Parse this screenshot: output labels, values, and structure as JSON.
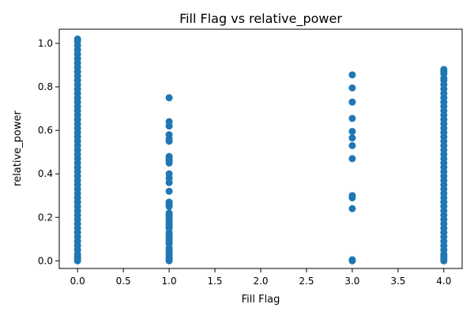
{
  "chart_data": {
    "type": "scatter",
    "title": "Fill Flag vs relative_power",
    "xlabel": "Fill Flag",
    "ylabel": "relative_power",
    "xlim": [
      -0.2,
      4.2
    ],
    "ylim": [
      -0.035,
      1.065
    ],
    "x_ticks": [
      0.0,
      0.5,
      1.0,
      1.5,
      2.0,
      2.5,
      3.0,
      3.5,
      4.0
    ],
    "x_tick_labels": [
      "0.0",
      "0.5",
      "1.0",
      "1.5",
      "2.0",
      "2.5",
      "3.0",
      "3.5",
      "4.0"
    ],
    "y_ticks": [
      0.0,
      0.2,
      0.4,
      0.6,
      0.8,
      1.0
    ],
    "y_tick_labels": [
      "0.0",
      "0.2",
      "0.4",
      "0.6",
      "0.8",
      "1.0"
    ],
    "grid": false,
    "legend": "none",
    "point_color": "#1f77b4",
    "series": [
      {
        "x_value": 0,
        "points": [
          0.0,
          0.01,
          0.02,
          0.03,
          0.05,
          0.07,
          0.09,
          0.11,
          0.13,
          0.15,
          0.17,
          0.19,
          0.21,
          0.23,
          0.25,
          0.27,
          0.29,
          0.31,
          0.33,
          0.35,
          0.37,
          0.39,
          0.41,
          0.43,
          0.45,
          0.47,
          0.49,
          0.51,
          0.53,
          0.55,
          0.57,
          0.59,
          0.61,
          0.63,
          0.65,
          0.67,
          0.69,
          0.71,
          0.73,
          0.75,
          0.77,
          0.79,
          0.81,
          0.83,
          0.85,
          0.87,
          0.89,
          0.91,
          0.93,
          0.95,
          0.97,
          0.99,
          1.01,
          1.02
        ]
      },
      {
        "x_value": 1,
        "points": [
          0.0,
          0.005,
          0.01,
          0.02,
          0.03,
          0.04,
          0.05,
          0.06,
          0.08,
          0.09,
          0.1,
          0.11,
          0.12,
          0.13,
          0.15,
          0.16,
          0.17,
          0.18,
          0.19,
          0.2,
          0.21,
          0.22,
          0.25,
          0.26,
          0.27,
          0.32,
          0.36,
          0.38,
          0.4,
          0.45,
          0.46,
          0.47,
          0.48,
          0.55,
          0.56,
          0.58,
          0.62,
          0.64,
          0.75
        ]
      },
      {
        "x_value": 3,
        "points": [
          0.0,
          0.005,
          0.24,
          0.29,
          0.3,
          0.47,
          0.53,
          0.565,
          0.595,
          0.655,
          0.73,
          0.795,
          0.855
        ]
      },
      {
        "x_value": 4,
        "points": [
          0.0,
          0.01,
          0.02,
          0.03,
          0.05,
          0.07,
          0.09,
          0.11,
          0.13,
          0.15,
          0.17,
          0.19,
          0.21,
          0.23,
          0.25,
          0.27,
          0.29,
          0.31,
          0.33,
          0.35,
          0.37,
          0.39,
          0.41,
          0.43,
          0.45,
          0.47,
          0.49,
          0.51,
          0.53,
          0.55,
          0.57,
          0.59,
          0.61,
          0.63,
          0.65,
          0.67,
          0.69,
          0.71,
          0.73,
          0.75,
          0.77,
          0.79,
          0.81,
          0.83,
          0.84,
          0.86,
          0.87,
          0.88
        ]
      }
    ]
  }
}
